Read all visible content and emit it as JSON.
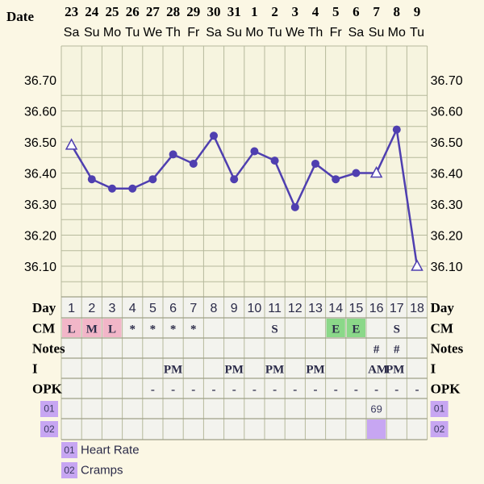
{
  "header": {
    "date_label": "Date",
    "day_label": "Day",
    "cm_label": "CM",
    "notes_label": "Notes",
    "i_label": "I",
    "opk_label": "OPK"
  },
  "colors": {
    "line": "#4f3fb0",
    "grid": "#b6b99c",
    "plot_bg": "#f6f4df",
    "lower_bg": "#f3f3ee",
    "period": "#f2b6c8",
    "egg": "#8bd889",
    "custom": "#c7a6f2",
    "page": "#fbf7e4"
  },
  "chart_data": {
    "type": "line",
    "dates": [
      "23",
      "24",
      "25",
      "26",
      "27",
      "28",
      "29",
      "30",
      "31",
      "1",
      "2",
      "3",
      "4",
      "5",
      "6",
      "7",
      "8",
      "9"
    ],
    "weekdays": [
      "Sa",
      "Su",
      "Mo",
      "Tu",
      "We",
      "Th",
      "Fr",
      "Sa",
      "Su",
      "Mo",
      "Tu",
      "We",
      "Th",
      "Fr",
      "Sa",
      "Su",
      "Mo",
      "Tu"
    ],
    "y_ticks": [
      "36.70",
      "36.60",
      "36.50",
      "36.40",
      "36.30",
      "36.20",
      "36.10"
    ],
    "ylim": [
      36.0,
      36.8
    ],
    "values": [
      36.49,
      36.38,
      36.35,
      36.35,
      36.38,
      36.46,
      36.43,
      36.52,
      36.38,
      36.47,
      36.44,
      36.29,
      36.43,
      36.38,
      36.4,
      36.4,
      36.54,
      36.1
    ],
    "marker": [
      "triangle",
      "circle",
      "circle",
      "circle",
      "circle",
      "circle",
      "circle",
      "circle",
      "circle",
      "circle",
      "circle",
      "circle",
      "circle",
      "circle",
      "circle",
      "triangle",
      "circle",
      "triangle"
    ],
    "cycle_days": [
      "1",
      "2",
      "3",
      "4",
      "5",
      "6",
      "7",
      "8",
      "9",
      "10",
      "11",
      "12",
      "13",
      "14",
      "15",
      "16",
      "17",
      "18"
    ],
    "cm": [
      "L",
      "M",
      "L",
      "*",
      "*",
      "*",
      "*",
      "",
      "",
      "",
      "S",
      "",
      "",
      "E",
      "E",
      "",
      "S",
      ""
    ],
    "cm_kind": [
      "period",
      "period",
      "period",
      "",
      "",
      "",
      "",
      "",
      "",
      "",
      "",
      "",
      "",
      "egg",
      "egg",
      "",
      "",
      ""
    ],
    "notes": [
      "",
      "",
      "",
      "",
      "",
      "",
      "",
      "",
      "",
      "",
      "",
      "",
      "",
      "",
      "",
      "#",
      "#",
      ""
    ],
    "intercourse": [
      "",
      "",
      "",
      "",
      "",
      "PM",
      "",
      "",
      "PM",
      "",
      "PM",
      "",
      "PM",
      "",
      "",
      "AM",
      "PM",
      ""
    ],
    "opk": [
      "",
      "",
      "",
      "",
      "-",
      "-",
      "-",
      "-",
      "-",
      "-",
      "-",
      "-",
      "-",
      "-",
      "-",
      "-",
      "-",
      "-"
    ],
    "custom_rows": [
      {
        "code": "01",
        "name": "Heart Rate",
        "values": [
          "",
          "",
          "",
          "",
          "",
          "",
          "",
          "",
          "",
          "",
          "",
          "",
          "",
          "",
          "",
          "69",
          "",
          ""
        ],
        "filled": [
          15
        ]
      },
      {
        "code": "02",
        "name": "Cramps",
        "values": [
          "",
          "",
          "",
          "",
          "",
          "",
          "",
          "",
          "",
          "",
          "",
          "",
          "",
          "",
          "",
          "",
          "",
          ""
        ],
        "filled": [
          1,
          2,
          5
        ]
      }
    ]
  }
}
